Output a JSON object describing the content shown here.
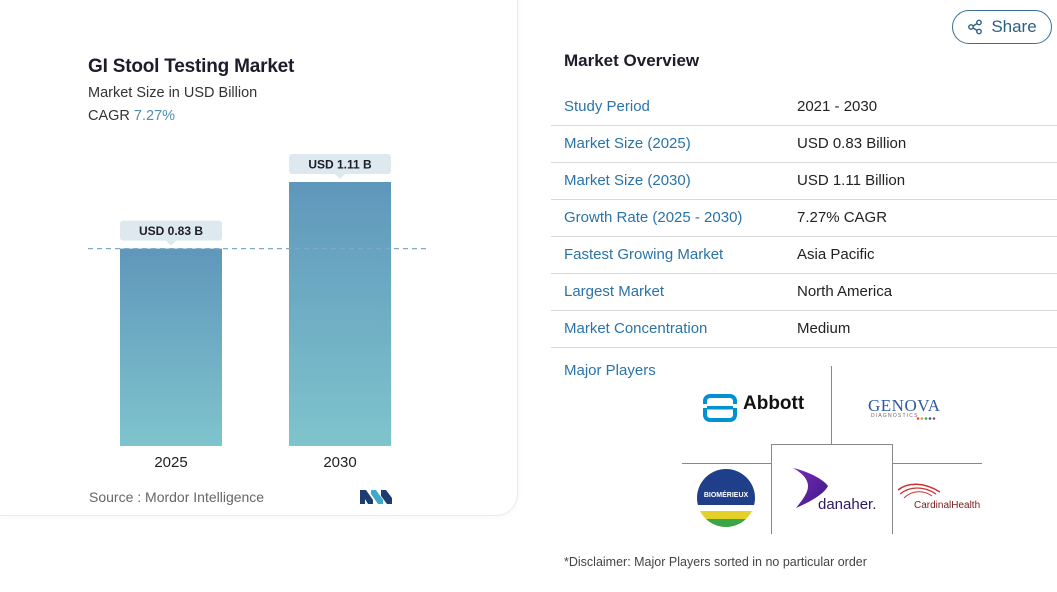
{
  "chart_card": {
    "title": "GI Stool Testing Market",
    "subtitle": "Market Size in USD Billion",
    "cagr_label": "CAGR",
    "cagr_value": "7.27%",
    "source": "Source :  Mordor Intelligence"
  },
  "chart_data": {
    "type": "bar",
    "title": "GI Stool Testing Market",
    "subtitle": "Market Size in USD Billion",
    "categories": [
      "2025",
      "2030"
    ],
    "values": [
      0.83,
      1.11
    ],
    "data_labels": [
      "USD 0.83 B",
      "USD 1.11 B"
    ],
    "ylim": [
      0,
      1.11
    ],
    "reference_line": 0.83,
    "grid": false,
    "colors": {
      "bar_top": "#5f97bb",
      "bar_bottom": "#7fc4cd",
      "label_bg": "#dde9ee",
      "reference_line": "#7eaac5"
    }
  },
  "share": {
    "label": "Share"
  },
  "overview": {
    "title": "Market Overview",
    "rows": [
      {
        "key": "Study Period",
        "value": "2021 - 2030"
      },
      {
        "key": "Market Size (2025)",
        "value": "USD 0.83 Billion"
      },
      {
        "key": "Market Size (2030)",
        "value": "USD 1.11 Billion"
      },
      {
        "key": "Growth Rate (2025 - 2030)",
        "value": "7.27% CAGR"
      },
      {
        "key": "Fastest Growing Market",
        "value": "Asia Pacific"
      },
      {
        "key": "Largest Market",
        "value": "North America"
      },
      {
        "key": "Market Concentration",
        "value": "Medium"
      }
    ]
  },
  "players": {
    "label": "Major Players",
    "logos": {
      "abbott": "Abbott",
      "genova": "GENOVA",
      "genova_sub": "DIAGNOSTICS",
      "biomerieux": "BIOMÉRIEUX",
      "danaher": "danaher.",
      "cardinal": "CardinalHealth"
    }
  },
  "disclaimer": "*Disclaimer: Major Players sorted in no particular order",
  "colors": {
    "accent": "#2a73a8",
    "share_border": "#3a6f91"
  }
}
